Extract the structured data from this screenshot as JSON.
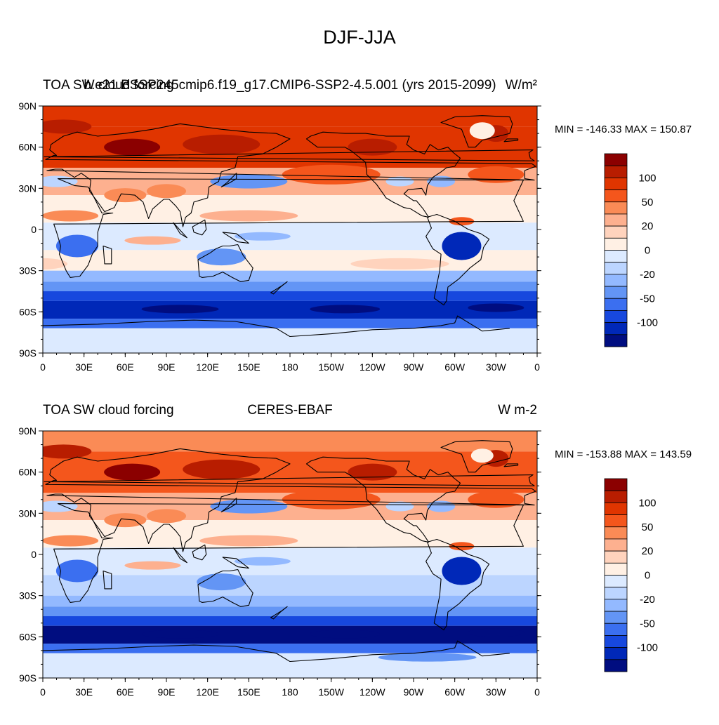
{
  "title": "DJF-JJA",
  "panels": [
    {
      "left_title": "TOA SW cloud forcing",
      "center_title": "b.e21.BSSP245cmip6.f19_g17.CMIP6-SSP2-4.5.001 (yrs 2015-2099)",
      "right_title": "W/m²",
      "minmax": "MIN = -146.33 MAX = 150.87"
    },
    {
      "left_title": "TOA SW cloud forcing",
      "center_title": "CERES-EBAF",
      "right_title": "W m-2",
      "minmax": "MIN = -153.88 MAX = 143.59"
    }
  ],
  "lat_labels": [
    "90N",
    "60N",
    "30N",
    "0",
    "30S",
    "60S",
    "90S"
  ],
  "lon_labels": [
    "0",
    "30E",
    "60E",
    "90E",
    "120E",
    "150E",
    "180",
    "150W",
    "120W",
    "90W",
    "60W",
    "30W",
    "0"
  ],
  "colorbar": {
    "labels": [
      "100",
      "50",
      "20",
      "0",
      "-20",
      "-50",
      "-100"
    ],
    "colors": [
      "#8b0000",
      "#b81d00",
      "#e03500",
      "#f4561c",
      "#fa8b56",
      "#fdb08f",
      "#ffd3bd",
      "#fff0e4",
      "#dceaff",
      "#bcd5ff",
      "#93b9ff",
      "#6395f5",
      "#3b6ff0",
      "#1748de",
      "#0028b8",
      "#000d80"
    ]
  }
}
